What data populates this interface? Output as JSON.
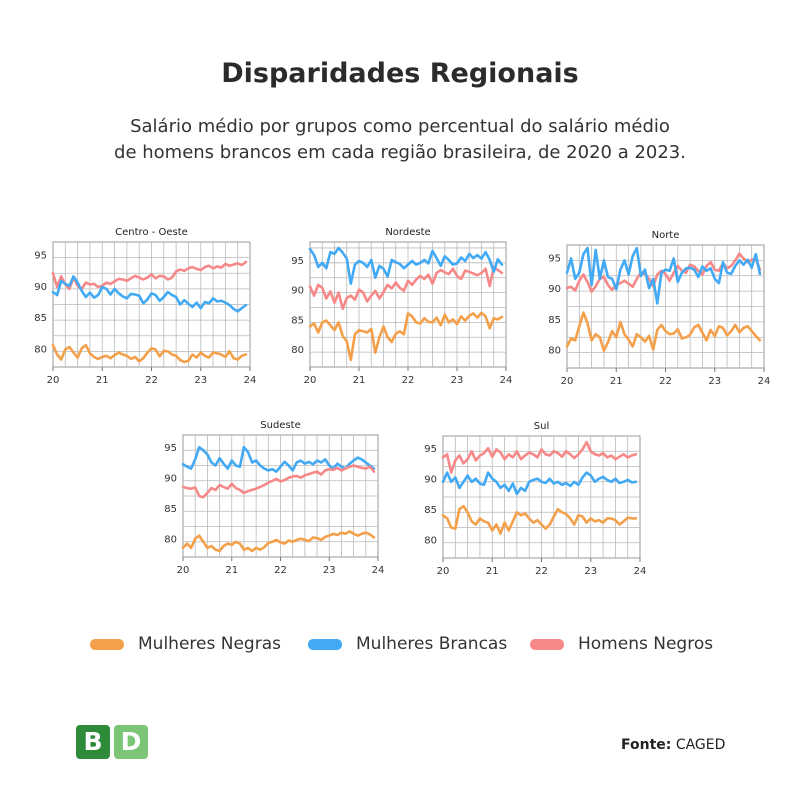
{
  "title": "Disparidades Regionais",
  "subtitle_line1": "Salário médio por grupos como percentual do salário médio",
  "subtitle_line2": "de homens brancos em cada região brasileira, de 2020 a 2023.",
  "legend": [
    "Mulheres Negras",
    "Mulheres Brancas",
    "Homens Negros"
  ],
  "colors": {
    "Mulheres Negras": "#f4a04a",
    "Mulheres Brancas": "#42aaf5",
    "Homens Negros": "#f78888"
  },
  "logo": {
    "letter1": "B",
    "letter2": "D",
    "color1": "#2e8b3a",
    "color2": "#7cc576"
  },
  "source_label": "Fonte:",
  "source_value": "CAGED",
  "chart_data": [
    {
      "type": "line",
      "title": "Centro - Oeste",
      "xlim": [
        20,
        24
      ],
      "ylim": [
        77,
        97
      ],
      "xticks": [
        "20",
        "21",
        "22",
        "23",
        "24"
      ],
      "yticks": [
        "80",
        "85",
        "90",
        "95"
      ],
      "grid": true,
      "series": [
        {
          "name": "Homens Negros",
          "values": [
            92.0,
            89.8,
            91.5,
            90.2,
            89.5,
            91.3,
            90.0,
            89.5,
            90.5,
            90.2,
            90.3,
            89.8,
            90.0,
            90.5,
            90.3,
            90.7,
            91.1,
            91.0,
            90.8,
            91.2,
            91.6,
            91.3,
            91.0,
            91.3,
            91.8,
            91.2,
            91.6,
            91.5,
            91.0,
            91.3,
            92.3,
            92.6,
            92.4,
            92.8,
            93.0,
            92.7,
            92.5,
            93.0,
            93.2,
            92.8,
            93.1,
            92.9,
            93.5,
            93.2,
            93.4,
            93.6,
            93.3,
            93.8
          ]
        },
        {
          "name": "Mulheres Brancas",
          "values": [
            89.0,
            88.5,
            90.8,
            90.3,
            90.0,
            91.5,
            90.5,
            89.2,
            88.2,
            88.9,
            88.1,
            88.5,
            89.8,
            89.5,
            88.6,
            89.5,
            88.8,
            88.3,
            88.0,
            88.7,
            88.6,
            88.4,
            87.2,
            87.8,
            88.8,
            88.5,
            87.6,
            88.2,
            89.0,
            88.5,
            88.2,
            87.0,
            87.7,
            87.1,
            86.6,
            87.3,
            86.4,
            87.4,
            87.2,
            88.0,
            87.5,
            87.6,
            87.3,
            86.9,
            86.3,
            85.9,
            86.4,
            86.9
          ]
        },
        {
          "name": "Mulheres Negras",
          "values": [
            80.5,
            79.0,
            78.2,
            79.8,
            80.2,
            79.3,
            78.5,
            80.0,
            80.5,
            79.2,
            78.6,
            78.3,
            78.6,
            78.8,
            78.4,
            78.9,
            79.3,
            79.0,
            78.8,
            78.3,
            78.6,
            77.9,
            78.4,
            79.3,
            80.0,
            79.8,
            78.7,
            79.6,
            79.5,
            79.0,
            78.8,
            78.1,
            77.8,
            78.0,
            79.0,
            78.5,
            79.3,
            78.8,
            78.5,
            79.3,
            79.2,
            79.0,
            78.6,
            79.5,
            78.4,
            78.2,
            78.8,
            79.0
          ]
        }
      ]
    },
    {
      "type": "line",
      "title": "Nordeste",
      "xlim": [
        20,
        24
      ],
      "ylim": [
        77,
        98
      ],
      "xticks": [
        "20",
        "21",
        "22",
        "23",
        "24"
      ],
      "yticks": [
        "80",
        "85",
        "90",
        "95"
      ],
      "grid": true,
      "series": [
        {
          "name": "Homens Negros",
          "values": [
            90.5,
            89.0,
            90.8,
            90.3,
            88.5,
            89.7,
            87.8,
            89.5,
            86.8,
            88.6,
            89.0,
            88.3,
            90.0,
            89.5,
            88.0,
            89.0,
            89.8,
            88.5,
            89.6,
            90.8,
            90.2,
            91.2,
            90.3,
            89.8,
            91.5,
            90.8,
            91.7,
            92.3,
            91.8,
            92.5,
            91.0,
            92.8,
            93.3,
            92.9,
            92.6,
            93.5,
            92.3,
            91.8,
            93.2,
            93.0,
            92.7,
            92.4,
            92.8,
            93.5,
            90.6,
            93.8,
            93.3,
            92.8
          ]
        },
        {
          "name": "Mulheres Brancas",
          "values": [
            96.8,
            95.8,
            93.8,
            94.5,
            93.6,
            96.3,
            96.0,
            97.0,
            96.2,
            95.2,
            91.0,
            94.2,
            94.8,
            94.5,
            93.8,
            95.0,
            92.0,
            94.0,
            93.5,
            92.2,
            95.0,
            94.6,
            94.3,
            93.6,
            94.2,
            94.8,
            94.2,
            94.5,
            95.0,
            94.4,
            96.5,
            95.3,
            94.0,
            95.6,
            95.0,
            94.2,
            94.4,
            95.4,
            94.8,
            96.0,
            95.3,
            95.8,
            95.2,
            96.3,
            95.0,
            93.0,
            95.1,
            94.2
          ]
        },
        {
          "name": "Mulheres Negras",
          "values": [
            83.8,
            84.3,
            82.8,
            84.5,
            84.8,
            84.0,
            83.2,
            84.5,
            82.2,
            81.3,
            78.2,
            82.5,
            83.2,
            83.0,
            82.8,
            83.4,
            79.4,
            82.0,
            83.8,
            82.0,
            81.2,
            82.6,
            83.0,
            82.5,
            86.0,
            85.5,
            84.5,
            84.3,
            85.2,
            84.6,
            84.5,
            85.3,
            84.0,
            85.8,
            84.5,
            85.0,
            84.2,
            85.5,
            84.8,
            85.6,
            86.0,
            85.3,
            86.1,
            85.5,
            83.5,
            85.2,
            85.0,
            85.4
          ]
        }
      ]
    },
    {
      "type": "line",
      "title": "Norte",
      "xlim": [
        20,
        24
      ],
      "ylim": [
        77,
        97
      ],
      "xticks": [
        "20",
        "21",
        "22",
        "23",
        "24"
      ],
      "yticks": [
        "80",
        "85",
        "90",
        "95"
      ],
      "grid": true,
      "series": [
        {
          "name": "Homens Negros",
          "values": [
            90.0,
            90.2,
            89.6,
            91.2,
            92.2,
            91.0,
            89.4,
            90.3,
            91.5,
            91.8,
            90.5,
            89.7,
            90.5,
            90.8,
            91.2,
            90.7,
            90.2,
            91.5,
            92.5,
            92.3,
            91.5,
            90.3,
            92.2,
            92.8,
            92.3,
            91.2,
            92.5,
            93.6,
            92.8,
            92.5,
            93.8,
            93.5,
            92.8,
            92.2,
            93.6,
            94.2,
            93.0,
            92.8,
            94.0,
            93.2,
            93.6,
            94.5,
            95.6,
            94.8,
            94.2,
            94.6,
            94.8,
            93.0
          ]
        },
        {
          "name": "Mulheres Brancas",
          "values": [
            92.5,
            94.8,
            91.5,
            92.5,
            95.5,
            96.5,
            90.5,
            96.2,
            91.5,
            94.5,
            91.8,
            91.5,
            89.8,
            93.0,
            94.5,
            92.2,
            95.2,
            96.5,
            92.0,
            93.0,
            90.0,
            91.5,
            87.5,
            92.5,
            93.0,
            92.8,
            94.8,
            91.0,
            92.5,
            93.2,
            93.3,
            93.0,
            91.8,
            93.5,
            92.8,
            93.2,
            91.5,
            90.8,
            94.2,
            92.5,
            92.3,
            93.6,
            94.5,
            93.8,
            94.6,
            93.3,
            95.5,
            92.3
          ]
        },
        {
          "name": "Mulheres Negras",
          "values": [
            80.5,
            81.8,
            81.5,
            83.8,
            86.0,
            84.3,
            81.5,
            82.5,
            82.0,
            79.8,
            81.2,
            83.0,
            82.0,
            84.5,
            82.5,
            81.6,
            80.5,
            82.5,
            82.0,
            81.3,
            82.2,
            80.0,
            83.2,
            84.0,
            83.0,
            82.5,
            82.6,
            83.3,
            81.8,
            82.0,
            82.4,
            83.6,
            84.0,
            82.7,
            81.5,
            83.2,
            82.2,
            83.8,
            83.5,
            82.3,
            83.0,
            84.0,
            82.8,
            83.5,
            83.8,
            83.0,
            82.2,
            81.5
          ]
        }
      ]
    },
    {
      "type": "line",
      "title": "Sudeste",
      "xlim": [
        20,
        24
      ],
      "ylim": [
        77,
        97
      ],
      "xticks": [
        "20",
        "21",
        "22",
        "23",
        "24"
      ],
      "yticks": [
        "80",
        "85",
        "90",
        "95"
      ],
      "grid": true,
      "series": [
        {
          "name": "Mulheres Brancas",
          "values": [
            92.2,
            91.8,
            91.5,
            93.0,
            95.0,
            94.5,
            93.8,
            92.5,
            92.0,
            93.2,
            92.3,
            91.5,
            92.8,
            92.0,
            91.8,
            95.0,
            94.2,
            92.5,
            92.8,
            92.0,
            91.5,
            91.2,
            91.4,
            91.0,
            91.8,
            92.6,
            92.0,
            91.2,
            92.5,
            92.8,
            92.3,
            92.6,
            92.2,
            92.8,
            92.5,
            93.0,
            92.0,
            91.5,
            92.3,
            91.8,
            91.5,
            92.3,
            92.8,
            93.3,
            93.0,
            92.5,
            92.0,
            91.5
          ]
        },
        {
          "name": "Homens Negros",
          "values": [
            88.5,
            88.3,
            88.2,
            88.4,
            87.0,
            86.8,
            87.5,
            88.3,
            88.0,
            88.8,
            88.5,
            88.2,
            89.0,
            88.3,
            88.0,
            87.5,
            87.8,
            88.0,
            88.2,
            88.5,
            88.8,
            89.2,
            89.5,
            89.8,
            89.4,
            89.6,
            90.0,
            90.2,
            90.3,
            90.0,
            90.4,
            90.6,
            90.8,
            91.0,
            90.5,
            91.2,
            91.4,
            91.3,
            91.6,
            91.2,
            91.5,
            91.8,
            92.0,
            91.8,
            91.6,
            91.5,
            91.8,
            91.0
          ]
        },
        {
          "name": "Mulheres Negras",
          "values": [
            78.5,
            79.2,
            78.5,
            80.0,
            80.5,
            79.5,
            78.5,
            78.8,
            78.2,
            78.0,
            78.8,
            79.2,
            79.0,
            79.5,
            79.2,
            78.2,
            78.5,
            78.0,
            78.5,
            78.2,
            78.6,
            79.3,
            79.5,
            79.8,
            79.4,
            79.2,
            79.7,
            79.5,
            79.8,
            80.0,
            79.8,
            79.6,
            80.2,
            80.1,
            79.8,
            80.3,
            80.5,
            80.8,
            80.6,
            81.0,
            80.8,
            81.2,
            80.8,
            80.5,
            80.8,
            81.0,
            80.7,
            80.2
          ]
        }
      ]
    },
    {
      "type": "line",
      "title": "Sul",
      "xlim": [
        20,
        24
      ],
      "ylim": [
        77,
        97
      ],
      "xticks": [
        "20",
        "21",
        "22",
        "23",
        "24"
      ],
      "yticks": [
        "80",
        "85",
        "90",
        "95"
      ],
      "grid": true,
      "series": [
        {
          "name": "Homens Negros",
          "values": [
            93.5,
            94.0,
            91.0,
            93.0,
            93.8,
            92.5,
            93.2,
            94.5,
            93.0,
            93.8,
            94.2,
            95.0,
            93.6,
            94.8,
            94.3,
            93.2,
            94.0,
            93.5,
            94.5,
            93.2,
            93.8,
            94.3,
            94.0,
            93.5,
            94.8,
            94.0,
            93.8,
            94.5,
            94.2,
            93.6,
            94.5,
            94.0,
            93.4,
            94.0,
            94.8,
            96.0,
            94.5,
            94.0,
            93.8,
            94.2,
            93.5,
            93.8,
            93.2,
            93.6,
            94.0,
            93.5,
            93.8,
            94.0
          ]
        },
        {
          "name": "Mulheres Brancas",
          "values": [
            89.5,
            91.0,
            89.5,
            90.2,
            88.5,
            89.5,
            90.5,
            89.5,
            90.0,
            89.2,
            89.0,
            91.0,
            90.0,
            89.5,
            88.5,
            89.0,
            88.0,
            89.2,
            87.5,
            88.5,
            88.0,
            89.5,
            89.8,
            90.0,
            89.5,
            89.3,
            90.0,
            89.2,
            89.5,
            89.0,
            89.3,
            88.8,
            89.5,
            89.0,
            90.2,
            91.0,
            90.5,
            89.5,
            90.0,
            90.3,
            89.8,
            89.5,
            90.0,
            89.3,
            89.5,
            89.8,
            89.4,
            89.5
          ]
        },
        {
          "name": "Mulheres Negras",
          "values": [
            84.0,
            83.5,
            82.0,
            81.8,
            85.0,
            85.5,
            84.5,
            83.0,
            82.5,
            83.5,
            83.0,
            82.8,
            81.5,
            82.5,
            81.0,
            82.8,
            81.5,
            83.0,
            84.5,
            84.0,
            84.3,
            83.5,
            82.8,
            83.2,
            82.5,
            81.8,
            82.5,
            83.8,
            85.0,
            84.5,
            84.2,
            83.5,
            82.5,
            84.0,
            83.8,
            82.8,
            83.5,
            83.0,
            83.2,
            82.8,
            83.5,
            83.5,
            83.2,
            82.5,
            83.0,
            83.6,
            83.5,
            83.5
          ]
        }
      ]
    }
  ]
}
